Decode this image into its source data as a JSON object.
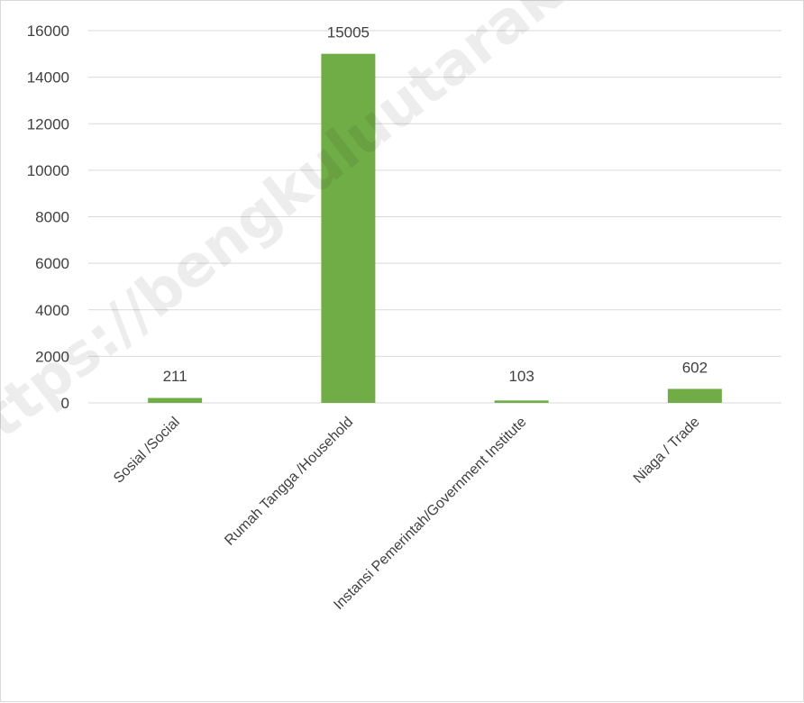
{
  "chart_data": {
    "type": "bar",
    "categories": [
      "Sosial /Social",
      "Rumah Tangga /Household",
      "Instansi Pemerintah/Government Institute",
      "Niaga / Trade"
    ],
    "values": [
      211,
      15005,
      103,
      602
    ],
    "data_labels": [
      "211",
      "15005",
      "103",
      "602"
    ],
    "y_ticks": [
      0,
      2000,
      4000,
      6000,
      8000,
      10000,
      12000,
      14000,
      16000
    ],
    "ylim": [
      0,
      16000
    ],
    "grid": true,
    "legend": "none",
    "bar_color": "#70ad47",
    "grid_color": "#d9d9d9",
    "text_color": "#404040"
  },
  "watermark": "https://bengkuluutarakab.bps.go.id"
}
